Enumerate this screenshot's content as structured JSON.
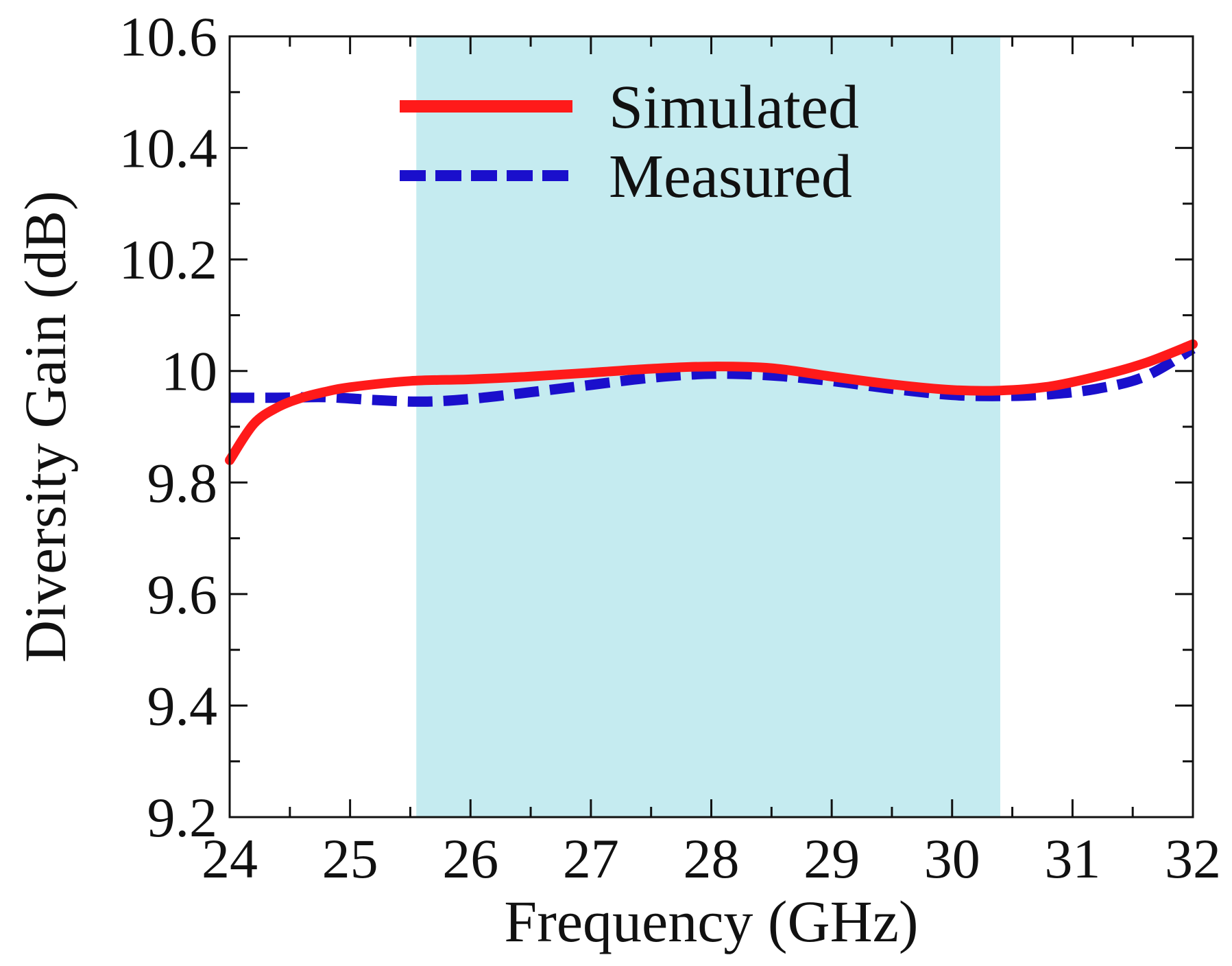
{
  "chart_data": {
    "type": "line",
    "xlabel": "Frequency (GHz)",
    "ylabel": "Diversity Gain (dB)",
    "xlim": [
      24,
      32
    ],
    "ylim": [
      9.2,
      10.6
    ],
    "xticks": [
      24,
      25,
      26,
      27,
      28,
      29,
      30,
      31,
      32
    ],
    "xtick_labels": [
      "24",
      "25",
      "26",
      "27",
      "28",
      "29",
      "30",
      "31",
      "32"
    ],
    "yticks": [
      9.2,
      9.4,
      9.6,
      9.8,
      10,
      10.2,
      10.4,
      10.6
    ],
    "ytick_labels": [
      "9.2",
      "9.4",
      "9.6",
      "9.8",
      "10",
      "10.2",
      "10.4",
      "10.6"
    ],
    "x_minor_step": 0.5,
    "y_minor_step": 0.1,
    "grid": false,
    "legend_position": "top-center",
    "shaded_band": {
      "x_start": 25.55,
      "x_end": 30.4,
      "color": "#c5ebf0"
    },
    "series": [
      {
        "name": "Simulated",
        "style": "solid",
        "color": "#ff1a1a",
        "x": [
          24,
          24.2,
          24.4,
          24.6,
          24.8,
          25,
          25.5,
          26,
          26.5,
          27,
          27.5,
          28,
          28.5,
          29,
          29.5,
          30,
          30.4,
          30.8,
          31.2,
          31.6,
          32
        ],
        "y": [
          9.84,
          9.905,
          9.935,
          9.952,
          9.963,
          9.971,
          9.982,
          9.985,
          9.99,
          9.997,
          10.004,
          10.008,
          10.005,
          9.99,
          9.976,
          9.966,
          9.965,
          9.972,
          9.99,
          10.014,
          10.048
        ]
      },
      {
        "name": "Measured",
        "style": "dashed",
        "color": "#1a0fcc",
        "x": [
          24,
          24.4,
          24.8,
          25.2,
          25.6,
          26,
          26.5,
          27,
          27.5,
          28,
          28.5,
          29,
          29.5,
          30,
          30.4,
          30.8,
          31.2,
          31.6,
          32
        ],
        "y": [
          9.952,
          9.952,
          9.953,
          9.948,
          9.945,
          9.95,
          9.962,
          9.975,
          9.988,
          9.995,
          9.992,
          9.982,
          9.968,
          9.957,
          9.955,
          9.958,
          9.968,
          9.99,
          10.04
        ]
      }
    ]
  }
}
